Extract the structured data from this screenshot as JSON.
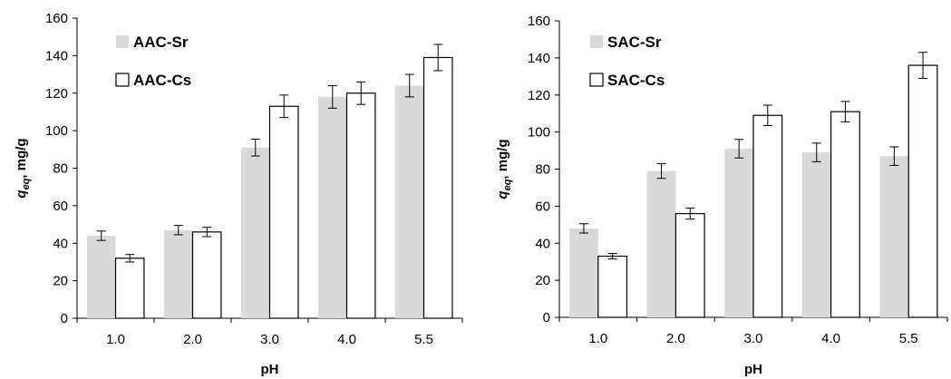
{
  "chart_data": [
    {
      "type": "bar",
      "categories": [
        "1.0",
        "2.0",
        "3.0",
        "4.0",
        "5.5"
      ],
      "series": [
        {
          "name": "AAC-Sr",
          "values": [
            44,
            47,
            91,
            118,
            124
          ],
          "errors": [
            2.5,
            2.5,
            4.5,
            6,
            6
          ],
          "color": "#d9d9d9",
          "stroke": "none"
        },
        {
          "name": "AAC-Cs",
          "values": [
            32,
            46,
            113,
            120,
            139
          ],
          "errors": [
            2,
            2.5,
            6,
            6,
            7
          ],
          "color": "#ffffff",
          "stroke": "#000000"
        }
      ],
      "yticks": [
        "0",
        "20",
        "40",
        "60",
        "80",
        "100",
        "120",
        "140",
        "160"
      ],
      "ylim": [
        0,
        160
      ],
      "xlabel": "pH",
      "ylabel_main": "q",
      "ylabel_sub": "eq",
      "ylabel_rest": ", mg/g",
      "legend": "top-left"
    },
    {
      "type": "bar",
      "categories": [
        "1.0",
        "2.0",
        "3.0",
        "4.0",
        "5.5"
      ],
      "series": [
        {
          "name": "SAC-Sr",
          "values": [
            48,
            79,
            91,
            89,
            87
          ],
          "errors": [
            2.5,
            4,
            5,
            5,
            5
          ],
          "color": "#d9d9d9",
          "stroke": "none"
        },
        {
          "name": "SAC-Cs",
          "values": [
            33,
            56,
            109,
            111,
            136
          ],
          "errors": [
            1.5,
            3,
            5.5,
            5.5,
            7
          ],
          "color": "#ffffff",
          "stroke": "#000000"
        }
      ],
      "yticks": [
        "0",
        "20",
        "40",
        "60",
        "80",
        "100",
        "120",
        "140",
        "160"
      ],
      "ylim": [
        0,
        160
      ],
      "xlabel": "pH",
      "ylabel_main": "q",
      "ylabel_sub": "eq",
      "ylabel_rest": ", mg/g",
      "legend": "top-left"
    }
  ]
}
